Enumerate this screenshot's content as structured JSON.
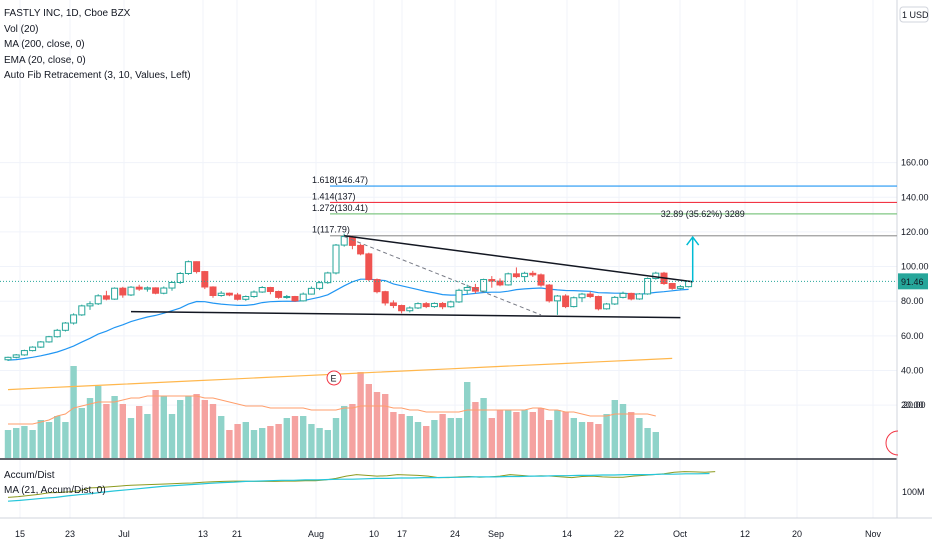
{
  "legend": {
    "symbol": "FASTLY INC, 1D, Cboe BZX",
    "vol": "Vol (20)",
    "ma": "MA (200, close, 0)",
    "ema": "EMA (20, close, 0)",
    "fib": "Auto Fib Retracement (3, 10, Values, Left)"
  },
  "lower_legend": {
    "accum": "Accum/Dist",
    "ma": "MA (21, Accum/Dist, 0)"
  },
  "colors": {
    "up": "#26a69a",
    "down": "#ef5350",
    "up_vol": "#8fd3c9",
    "down_vol": "#f5a2a0",
    "ema": "#2196f3",
    "ma200": "#ffb74d",
    "vol_ma": "#ff9e6b",
    "fib_1618": "#2196f3",
    "fib_1414": "#f23645",
    "fib_1272": "#81c784",
    "fib_1": "#9e9e9e",
    "accum": "#8c9a1f",
    "accum_ma": "#26c6da",
    "arrow": "#00bcd4"
  },
  "chart_data": {
    "type": "candlestick",
    "price_axis": {
      "ticks": [
        20,
        40,
        60,
        80,
        100,
        120,
        140,
        160
      ],
      "tick_labels": [
        "20.00",
        "40.00",
        "60.00",
        "80.00",
        "100.00",
        "120.00",
        "140.00",
        "160.00"
      ],
      "unit_label": "1 USD",
      "last_price_label": "91.46",
      "last_price": 91.46
    },
    "time_axis": {
      "labels": [
        "15",
        "23",
        "Jul",
        "13",
        "21",
        "Aug",
        "10",
        "17",
        "24",
        "Sep",
        "14",
        "22",
        "Oct",
        "12",
        "20",
        "Nov"
      ]
    },
    "candles": [
      [
        46.2,
        48,
        45.5,
        47.6
      ],
      [
        47.6,
        49.5,
        47,
        49
      ],
      [
        49,
        52,
        48.5,
        51.5
      ],
      [
        51.5,
        54,
        51,
        53.5
      ],
      [
        53.5,
        57,
        53,
        56.5
      ],
      [
        56.5,
        60,
        56,
        59.5
      ],
      [
        59.5,
        64,
        59,
        63.2
      ],
      [
        63.2,
        68,
        62.5,
        67.4
      ],
      [
        67.4,
        73,
        66.5,
        72.1
      ],
      [
        72.1,
        78,
        71.5,
        77.3
      ],
      [
        77.3,
        80,
        75,
        78.5
      ],
      [
        78.5,
        84,
        77.8,
        83.1
      ],
      [
        83.1,
        86,
        80.5,
        81.2
      ],
      [
        81.2,
        88,
        80.8,
        87.5
      ],
      [
        87.5,
        88.3,
        82,
        83.6
      ],
      [
        83.6,
        88.7,
        83,
        88.1
      ],
      [
        88.1,
        89.5,
        86,
        87
      ],
      [
        87,
        88.5,
        85.5,
        87.7
      ],
      [
        87.7,
        88,
        84,
        84.6
      ],
      [
        84.6,
        88.5,
        84,
        87.6
      ],
      [
        87.6,
        91.5,
        86,
        90.8
      ],
      [
        90.8,
        96.8,
        90,
        96
      ],
      [
        96,
        103.5,
        95.2,
        102.8
      ],
      [
        102.8,
        103,
        96,
        97.1
      ],
      [
        97.1,
        97.5,
        87,
        88.2
      ],
      [
        88.2,
        88.6,
        82,
        83.3
      ],
      [
        83.3,
        85.8,
        82.6,
        84.6
      ],
      [
        84.6,
        85,
        82.9,
        83.6
      ],
      [
        83.6,
        84.8,
        80.4,
        81.1
      ],
      [
        81.1,
        83.3,
        80.2,
        82.7
      ],
      [
        82.7,
        86.2,
        82,
        85.3
      ],
      [
        85.3,
        88.7,
        84.8,
        87.9
      ],
      [
        87.9,
        88.3,
        84,
        85.6
      ],
      [
        85.6,
        86.1,
        81.4,
        82.2
      ],
      [
        82.2,
        83.6,
        81.4,
        82.7
      ],
      [
        82.7,
        83.1,
        79.6,
        80.2
      ],
      [
        80.2,
        85,
        79.8,
        84.1
      ],
      [
        84.1,
        88.5,
        83.8,
        87.4
      ],
      [
        87.4,
        91.6,
        86.4,
        90.7
      ],
      [
        90.7,
        97,
        90,
        96.3
      ],
      [
        96.3,
        113,
        95.5,
        112.4
      ],
      [
        112.4,
        119,
        111.5,
        117.3
      ],
      [
        116.9,
        117.8,
        110,
        112.2
      ],
      [
        112.2,
        113,
        106.5,
        107.3
      ],
      [
        107.3,
        108,
        91.5,
        92.5
      ],
      [
        92.5,
        93.1,
        84.5,
        85.5
      ],
      [
        85.5,
        86,
        77.5,
        79
      ],
      [
        79,
        80.5,
        76,
        77.5
      ],
      [
        77.5,
        78,
        73,
        74.5
      ],
      [
        74.5,
        77,
        73.5,
        76.1
      ],
      [
        76.1,
        79.3,
        75.5,
        78.6
      ],
      [
        78.6,
        79.5,
        76,
        76.9
      ],
      [
        76.9,
        79.3,
        76.2,
        78.7
      ],
      [
        78.7,
        79.5,
        75.4,
        76.8
      ],
      [
        76.8,
        80.3,
        76.2,
        79.6
      ],
      [
        79.6,
        87.2,
        79,
        86.3
      ],
      [
        86.3,
        89.5,
        83.8,
        87.9
      ],
      [
        87.9,
        90,
        84.5,
        85.8
      ],
      [
        85.8,
        93,
        85.2,
        92.5
      ],
      [
        92.5,
        94.5,
        87.8,
        91.6
      ],
      [
        91.6,
        93.2,
        88.6,
        89.4
      ],
      [
        89.4,
        96.5,
        89,
        95.8
      ],
      [
        95.8,
        99.5,
        93.3,
        94.2
      ],
      [
        94.2,
        97,
        91.2,
        96.1
      ],
      [
        96.1,
        97.5,
        94,
        95.2
      ],
      [
        95.2,
        96,
        88.4,
        89.3
      ],
      [
        89.3,
        89.9,
        79.2,
        80.2
      ],
      [
        80.2,
        83.6,
        72.1,
        83
      ],
      [
        83,
        84,
        76,
        76.9
      ],
      [
        76.9,
        82.7,
        76.4,
        82
      ],
      [
        82,
        84.8,
        79.5,
        84.1
      ],
      [
        84.1,
        85.5,
        81.8,
        82.7
      ],
      [
        82.7,
        83.2,
        74.7,
        75.6
      ],
      [
        75.6,
        79,
        75.1,
        78.4
      ],
      [
        78.4,
        83,
        77.8,
        82.2
      ],
      [
        82.2,
        85.5,
        81.6,
        84.5
      ],
      [
        84.5,
        84.9,
        80.5,
        81.3
      ],
      [
        81.3,
        84.7,
        80.8,
        84.2
      ],
      [
        84.2,
        93.7,
        83.7,
        93.1
      ],
      [
        93.1,
        97,
        92.4,
        96.2
      ],
      [
        96.2,
        96.9,
        89.4,
        90.2
      ],
      [
        90.2,
        90.6,
        86.6,
        87.4
      ],
      [
        87.4,
        89.3,
        86.8,
        88.4
      ],
      [
        88.4,
        92,
        87.9,
        91.46
      ]
    ],
    "ema20": [
      46,
      46.3,
      46.9,
      47.6,
      48.5,
      49.5,
      50.7,
      52.3,
      54.1,
      56.4,
      58.6,
      61,
      62.7,
      64.8,
      66.4,
      68.2,
      69.6,
      70.9,
      71.8,
      73.1,
      74.5,
      76,
      78.3,
      79.8,
      79.7,
      78.9,
      78.3,
      77.9,
      77.6,
      77.6,
      78.1,
      79.2,
      79.7,
      79.9,
      80,
      79.9,
      80.3,
      81.3,
      82.3,
      83.7,
      86.3,
      88.9,
      91.2,
      92.7,
      92.7,
      92.3,
      91.9,
      90,
      88.9,
      87.8,
      86.7,
      85.6,
      84.8,
      83.8,
      83.5,
      83.6,
      84,
      84.5,
      85,
      85.2,
      85.2,
      85.8,
      86.7,
      87.1,
      87.4,
      87.6,
      87,
      86.5,
      86.2,
      86.1,
      85.9,
      85.7,
      84.9,
      84.8,
      84.6,
      84.6,
      84.3,
      84,
      84.5,
      85.1,
      85.5,
      86,
      86.5,
      86.8
    ],
    "volume": [
      14,
      15,
      16,
      14,
      19,
      18,
      21,
      18,
      46,
      25,
      30,
      36,
      27,
      31,
      27,
      20,
      26,
      22,
      34,
      31,
      22,
      29,
      31,
      32,
      29,
      27,
      21,
      14,
      17,
      18,
      14,
      15,
      16,
      17,
      20,
      21,
      21,
      17,
      15,
      14,
      20,
      26,
      27,
      43,
      37,
      33,
      32,
      23,
      22,
      21,
      18,
      16,
      19,
      22,
      20,
      20,
      38,
      28,
      30,
      20,
      24,
      24,
      23,
      24,
      23,
      25,
      19,
      24,
      23,
      20,
      18,
      18,
      17,
      22,
      29,
      27,
      23,
      20,
      15,
      13
    ],
    "vol_ma": [
      17,
      17,
      17,
      17,
      18,
      19,
      21,
      22,
      25,
      26,
      27,
      28,
      28,
      28,
      29,
      30,
      30,
      31,
      31,
      31,
      31,
      31,
      31,
      31,
      30,
      30,
      29,
      28,
      27,
      26,
      26,
      26,
      25,
      25,
      25,
      25,
      25,
      24,
      24,
      24,
      24,
      25,
      25,
      26,
      26,
      26,
      26,
      25,
      25,
      24,
      24,
      23,
      23,
      23,
      23,
      23,
      24,
      24,
      24,
      24,
      24,
      24,
      24,
      24,
      25,
      25,
      24,
      24,
      23,
      23,
      22,
      21,
      21,
      21,
      22,
      22,
      22,
      22,
      22,
      21
    ],
    "vol_ma_price": [
      29,
      30,
      31,
      32,
      33,
      34,
      35,
      36,
      37,
      38,
      39,
      40,
      41,
      42,
      43,
      44,
      45,
      46,
      47
    ],
    "ad_line": [
      20,
      22,
      25,
      28,
      32,
      33,
      35,
      38,
      45,
      46,
      48,
      50,
      52,
      53,
      54,
      55,
      56,
      57,
      58,
      60,
      61,
      62,
      63,
      63,
      62,
      62,
      62,
      63,
      63,
      64,
      64,
      66,
      70,
      76,
      80,
      78,
      76,
      77,
      80,
      79,
      78,
      76,
      72,
      72,
      74,
      75,
      73,
      74,
      76,
      80,
      78,
      76,
      77,
      76,
      74,
      72,
      75,
      76,
      74,
      73,
      73,
      76,
      78,
      80,
      82,
      86,
      88,
      87,
      86,
      88
    ],
    "ad_ma": [
      10,
      12,
      15,
      18,
      20,
      24,
      27,
      30,
      34,
      37,
      40,
      43,
      46,
      49,
      51,
      53,
      55,
      57,
      59,
      60,
      62,
      63,
      64,
      65,
      65,
      66,
      66,
      67,
      68,
      68,
      69,
      70,
      70,
      71,
      71,
      72,
      72,
      73,
      73,
      74,
      74,
      74,
      75,
      75,
      76,
      76,
      77,
      77,
      78,
      78,
      79,
      79,
      80,
      80,
      80,
      81,
      81,
      82,
      82,
      83
    ],
    "ad_axis_label": "100M",
    "fib_levels": [
      {
        "level": "1.618",
        "value": 146.47,
        "label": "1.618(146.47)"
      },
      {
        "level": "1.414",
        "value": 137,
        "label": "1.414(137)"
      },
      {
        "level": "1.272",
        "value": 130.41,
        "label": "1.272(130.41)"
      },
      {
        "level": "1",
        "value": 117.79,
        "label": "1(117.79)"
      }
    ],
    "measure_label": "32.89 (35.62%) 3289",
    "triangle": {
      "upper": [
        [
          41,
          117.79
        ],
        [
          83.5,
          91.2
        ]
      ],
      "lower": [
        [
          15,
          74
        ],
        [
          82,
          70.5
        ]
      ]
    },
    "dashed": [
      [
        41,
        117.3
      ],
      [
        65,
        72.1
      ]
    ],
    "arrow": {
      "x": 83.5,
      "y_from": 91.2,
      "y_to": 117
    }
  }
}
